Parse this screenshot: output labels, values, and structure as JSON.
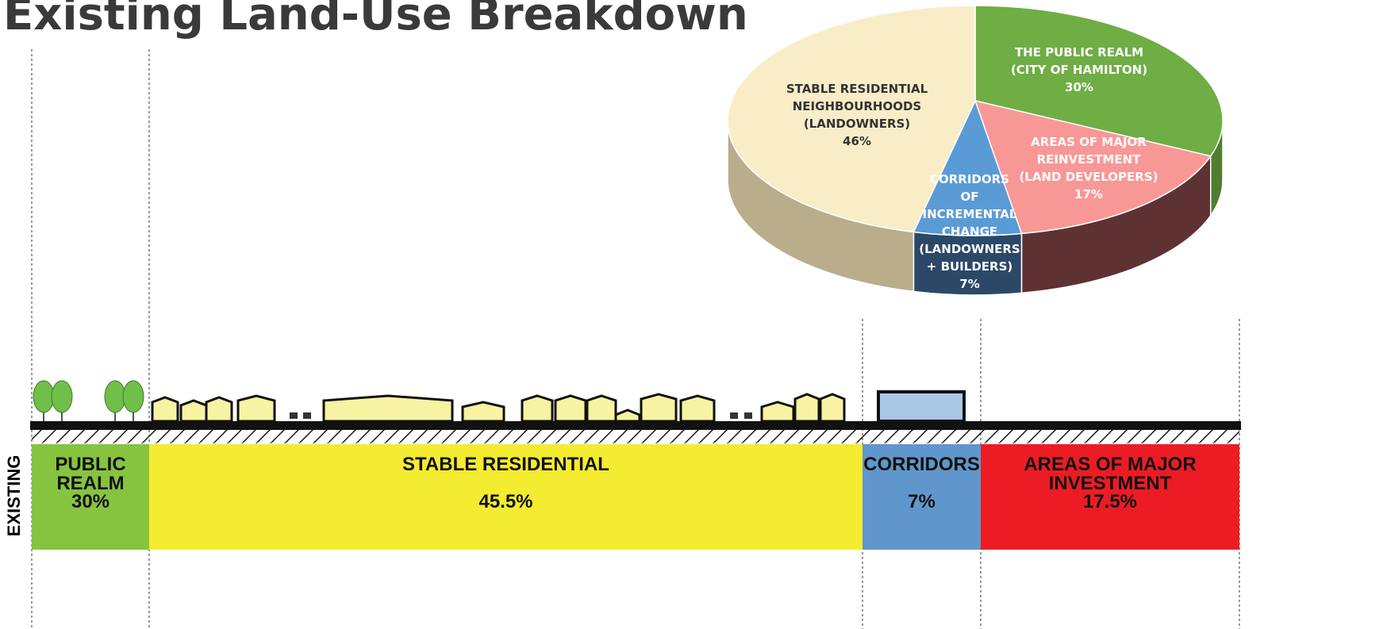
{
  "chart_data": {
    "type": "pie",
    "title": "Existing Land-Use Breakdown",
    "categories": [
      "THE PUBLIC REALM\n(CITY OF HAMILTON)",
      "AREAS OF MAJOR\nREINVESTMENT\n(LAND DEVELOPERS)",
      "CORRIDORS\nOF\nINCREMENTAL\nCHANGE\n(LANDOWNERS\n+ BUILDERS)",
      "STABLE RESIDENTIAL\nNEIGHBOURHOODS\n(LANDOWNERS)"
    ],
    "values": [
      30,
      17,
      7,
      46
    ],
    "value_labels": [
      "30%",
      "17%",
      "7%",
      "46%"
    ],
    "colors": [
      "#6fad45",
      "#f89896",
      "#5b9bd5",
      "#f9edc8"
    ]
  },
  "strip": {
    "label": "EXISTING",
    "segments": [
      {
        "name": "PUBLIC\nREALM",
        "value": "30%",
        "color": "#86c440"
      },
      {
        "name": "STABLE RESIDENTIAL",
        "value": "45.5%",
        "color": "#f4ec30"
      },
      {
        "name": "CORRIDORS",
        "value": "7%",
        "color": "#5f97cc"
      },
      {
        "name": "AREAS OF MAJOR\nINVESTMENT",
        "value": "17.5%",
        "color": "#ec1c24"
      }
    ]
  }
}
